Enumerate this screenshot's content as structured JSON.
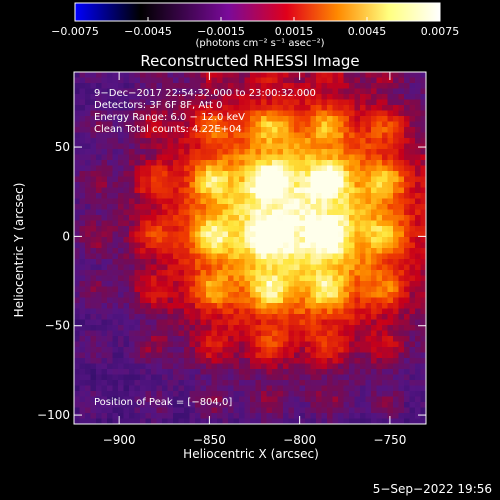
{
  "chart_data": [
    {
      "type": "colorbar",
      "orientation": "horizontal",
      "range": [
        -0.0075,
        0.0075
      ],
      "tick_labels": [
        "−0.0075",
        "−0.0045",
        "−0.0015",
        "0.0015",
        "0.0045",
        "0.0075"
      ],
      "ticks": [
        -0.0075,
        -0.0045,
        -0.0015,
        0.0015,
        0.0045,
        0.0075
      ],
      "unit_label": "(photons cm⁻² s⁻¹ asec⁻²)",
      "colors": [
        "#0000ff",
        "#000000",
        "#7a0a9a",
        "#e0001a",
        "#ff8a00",
        "#ffff80",
        "#ffffff"
      ]
    },
    {
      "type": "heatmap",
      "title": "Reconstructed RHESSI Image",
      "xlabel": "Heliocentric X (arcsec)",
      "ylabel": "Heliocentric Y (arcsec)",
      "xlim": [
        -925,
        -730
      ],
      "ylim": [
        -105,
        92
      ],
      "x_tick_labels": [
        "−900",
        "−850",
        "−800",
        "−750"
      ],
      "x_ticks": [
        -900,
        -850,
        -800,
        -750
      ],
      "y_tick_labels": [
        "−100",
        "−50",
        "0",
        "50"
      ],
      "y_ticks": [
        -100,
        -50,
        0,
        50
      ],
      "peak": [
        -804,
        0
      ],
      "annotations": [
        "9−Dec−2017 22:54:32.000 to 23:00:32.000",
        "Detectors: 3F 6F 8F, Att 0",
        "Energy Range: 6.0 − 12.0 keV",
        "Clean     Total counts: 4.22E+04"
      ],
      "peak_label": "Position of Peak = [−804,0]"
    }
  ],
  "footer": {
    "date": "5−Sep−2022 19:56"
  }
}
